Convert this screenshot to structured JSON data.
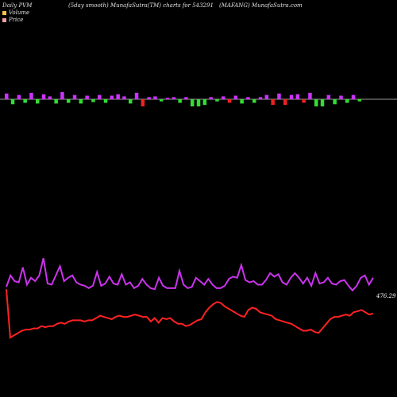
{
  "header": {
    "left": "Daily PVM",
    "center": "(5day smooth) MunafaSutra(TM) charts for 543291",
    "right": "(MAFANG) MunafaSutra.com"
  },
  "legend": [
    {
      "label": "Volume",
      "color": "#f4c542"
    },
    {
      "label": "Price",
      "color": "#f0a0a0"
    }
  ],
  "colors": {
    "background": "#000000",
    "volume_up": "#cc33ff",
    "volume_down": "#33dd33",
    "volume_red": "#ee2222",
    "price_line": "#cc33ee",
    "avg_line": "#ff2222",
    "baseline": "#cccccc"
  },
  "chart_data": {
    "type": "line",
    "title": "",
    "price_label": "476.29",
    "volume": {
      "colors": [
        "m",
        "g",
        "m",
        "g",
        "m",
        "g",
        "m",
        "m",
        "g",
        "m",
        "g",
        "m",
        "g",
        "m",
        "g",
        "m",
        "g",
        "m",
        "m",
        "m",
        "g",
        "m",
        "r",
        "m",
        "m",
        "g",
        "m",
        "m",
        "g",
        "m",
        "g",
        "g",
        "g",
        "m",
        "g",
        "m",
        "r",
        "m",
        "g",
        "m",
        "g",
        "m",
        "m",
        "r",
        "m",
        "r",
        "m",
        "m",
        "r",
        "m",
        "g",
        "g",
        "m",
        "g",
        "m",
        "g",
        "m",
        "g"
      ],
      "values": [
        0.8,
        -0.7,
        0.6,
        -0.5,
        0.9,
        -0.6,
        0.7,
        0.4,
        -0.6,
        1.0,
        -0.5,
        0.6,
        -0.6,
        0.5,
        -0.4,
        0.6,
        -0.5,
        0.5,
        0.7,
        0.4,
        -0.6,
        0.9,
        -1.0,
        0.3,
        0.4,
        -0.3,
        0.2,
        0.3,
        -0.5,
        0.3,
        -1.0,
        -1.0,
        -0.8,
        0.3,
        -0.3,
        0.4,
        -0.5,
        0.5,
        -0.6,
        0.3,
        -0.5,
        0.3,
        0.6,
        -0.8,
        0.8,
        -0.8,
        0.6,
        0.7,
        -0.5,
        0.9,
        -1.0,
        -1.0,
        0.6,
        -0.7,
        0.5,
        -0.5,
        0.6,
        -0.3
      ]
    },
    "series": [
      {
        "values": [
          468,
          478,
          473,
          472,
          485,
          470,
          476,
          473,
          478,
          493,
          471,
          470,
          478,
          486,
          473,
          476,
          478,
          472,
          470,
          469,
          467,
          469,
          481,
          469,
          471,
          477,
          471,
          470,
          479,
          470,
          472,
          467,
          469,
          475,
          470,
          467,
          466,
          476,
          469,
          467,
          467,
          467,
          482,
          470,
          467,
          468,
          476,
          473,
          470,
          475,
          470,
          467,
          467,
          469,
          475,
          477,
          476,
          487,
          474,
          472,
          473,
          470,
          470,
          474,
          480,
          477,
          479,
          472,
          470,
          476,
          480,
          476,
          471,
          476,
          469,
          480,
          471,
          472,
          476,
          471,
          470,
          473,
          474,
          469,
          465,
          469,
          476,
          478,
          470,
          476
        ]
      },
      {
        "values": [
          466,
          424,
          426,
          428,
          430,
          431,
          431,
          432,
          432,
          434,
          433,
          434,
          434,
          436,
          437,
          436,
          438,
          439,
          439,
          439,
          438,
          439,
          439,
          441,
          443,
          442,
          441,
          440,
          442,
          443,
          442,
          442,
          443,
          444,
          443,
          442,
          442,
          438,
          441,
          437,
          441,
          440,
          441,
          438,
          436,
          436,
          434,
          435,
          437,
          439,
          440,
          446,
          450,
          453,
          455,
          454,
          451,
          449,
          447,
          445,
          443,
          442,
          448,
          450,
          449,
          446,
          445,
          444,
          443,
          440,
          439,
          438,
          437,
          436,
          434,
          432,
          430,
          430,
          431,
          429,
          428,
          432,
          436,
          440,
          442,
          442,
          443,
          444,
          443,
          446,
          447,
          448,
          446,
          444,
          445
        ]
      }
    ]
  }
}
